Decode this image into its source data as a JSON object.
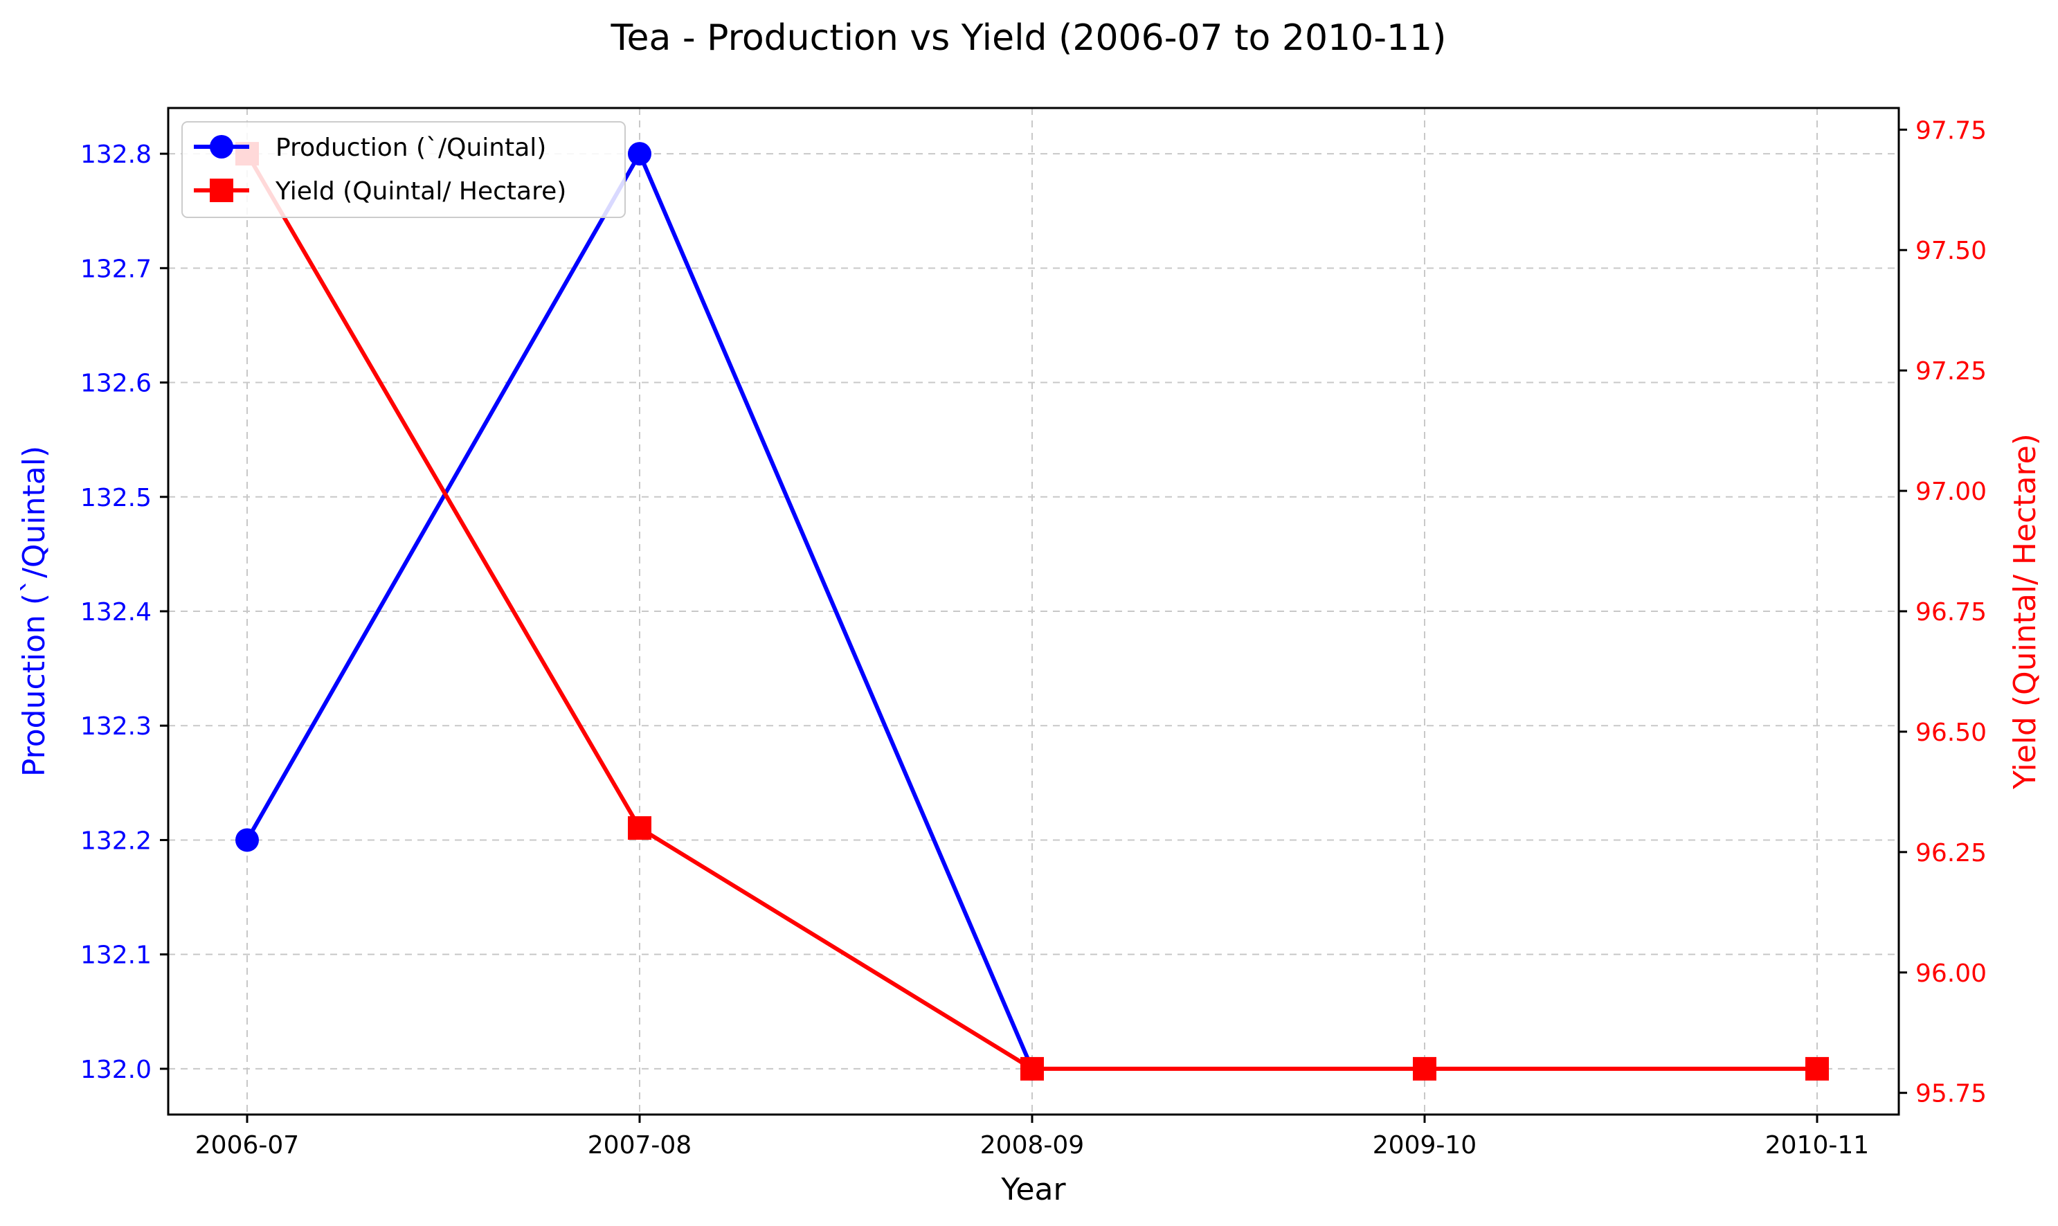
{
  "chart_data": {
    "type": "line",
    "title": "Tea  - Production vs Yield (2006-07 to 2010-11)",
    "xlabel": "Year",
    "categories": [
      "2006-07",
      "2007-08",
      "2008-09",
      "2009-10",
      "2010-11"
    ],
    "y_left": {
      "label": "Production (`/Quintal)",
      "color": "#0000ff",
      "ticks": [
        "132.0",
        "132.1",
        "132.2",
        "132.3",
        "132.4",
        "132.5",
        "132.6",
        "132.7",
        "132.8"
      ],
      "range": [
        131.96,
        132.84
      ]
    },
    "y_right": {
      "label": "Yield (Quintal/ Hectare)",
      "color": "#ff0000",
      "ticks": [
        "95.75",
        "96.00",
        "96.25",
        "96.50",
        "96.75",
        "97.00",
        "97.25",
        "97.50",
        "97.75"
      ],
      "range": [
        95.705,
        97.795
      ]
    },
    "series": [
      {
        "name": "Production (`/Quintal)",
        "axis": "left",
        "color": "#0000ff",
        "marker": "circle",
        "values": [
          132.2,
          132.8,
          132.0,
          null,
          null
        ]
      },
      {
        "name": "Yield (Quintal/ Hectare)",
        "axis": "right",
        "color": "#ff0000",
        "marker": "square",
        "values": [
          97.7,
          96.3,
          95.8,
          95.8,
          95.8
        ]
      }
    ],
    "grid": true,
    "legend_position": "upper-left"
  }
}
